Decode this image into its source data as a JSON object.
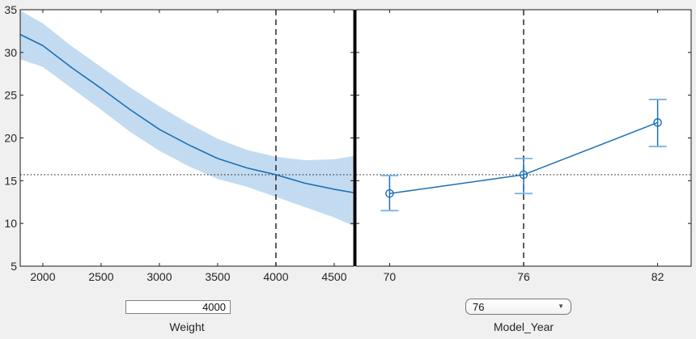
{
  "figure": {
    "bg": "#f0f0f0",
    "plot_bg": "#ffffff"
  },
  "colors": {
    "line": "#1b6fb5",
    "band": "#c3dbf0",
    "cap": "#7ab4dd",
    "axis": "#1a1a1a",
    "text": "#262626",
    "dash": "#1a1a1a",
    "dot": "#333333",
    "divider": "#000000"
  },
  "chart_data": [
    {
      "type": "line",
      "title": "",
      "xlabel": "Weight",
      "ylabel": "",
      "xlim": [
        1806,
        4667
      ],
      "ylim": [
        5,
        35
      ],
      "xticks": [
        2000,
        2500,
        3000,
        3500,
        4000,
        4500
      ],
      "yticks": [
        5,
        10,
        15,
        20,
        25,
        30,
        35
      ],
      "grid": false,
      "series": [
        {
          "name": "fitted-response-with-confidence-band",
          "x": [
            1806,
            2000,
            2250,
            2500,
            2750,
            3000,
            3250,
            3500,
            3750,
            4000,
            4250,
            4500,
            4667
          ],
          "y": [
            32.1,
            30.8,
            28.2,
            25.8,
            23.3,
            21.0,
            19.2,
            17.6,
            16.5,
            15.7,
            14.7,
            14.0,
            13.6
          ],
          "upper": [
            34.9,
            33.4,
            30.7,
            28.3,
            25.9,
            23.7,
            21.7,
            19.9,
            18.6,
            17.8,
            17.4,
            17.5,
            17.9
          ],
          "lower": [
            29.2,
            28.3,
            25.8,
            23.3,
            20.7,
            18.5,
            16.7,
            15.2,
            14.3,
            13.1,
            11.9,
            10.7,
            9.7
          ]
        }
      ],
      "crosshair": {
        "x": 4000,
        "y": 15.7
      }
    },
    {
      "type": "scatter",
      "title": "",
      "xlabel": "Model_Year",
      "ylabel": "",
      "xlim": [
        68.5,
        83.5
      ],
      "ylim": [
        5,
        35
      ],
      "xticks": [
        70,
        76,
        82
      ],
      "yticks": [
        5,
        10,
        15,
        20,
        25,
        30,
        35
      ],
      "grid": false,
      "points": [
        {
          "x": 70,
          "y": 13.5,
          "lo": 11.5,
          "hi": 15.6
        },
        {
          "x": 76,
          "y": 15.7,
          "lo": 13.5,
          "hi": 17.6
        },
        {
          "x": 82,
          "y": 21.8,
          "lo": 19.0,
          "hi": 24.5
        }
      ],
      "crosshair": {
        "x": 76,
        "y": 15.7
      }
    }
  ],
  "controls": {
    "weight": {
      "value": "4000",
      "label": "Weight"
    },
    "model_year": {
      "value": "76",
      "label": "Model_Year",
      "icon": "▼"
    }
  }
}
